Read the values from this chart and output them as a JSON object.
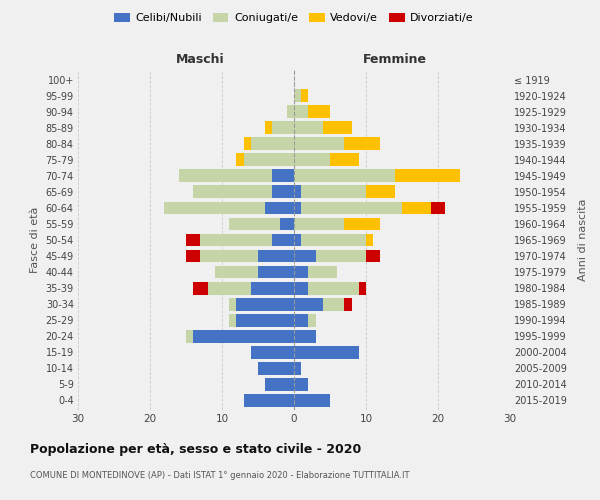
{
  "age_groups": [
    "0-4",
    "5-9",
    "10-14",
    "15-19",
    "20-24",
    "25-29",
    "30-34",
    "35-39",
    "40-44",
    "45-49",
    "50-54",
    "55-59",
    "60-64",
    "65-69",
    "70-74",
    "75-79",
    "80-84",
    "85-89",
    "90-94",
    "95-99",
    "100+"
  ],
  "birth_years": [
    "2015-2019",
    "2010-2014",
    "2005-2009",
    "2000-2004",
    "1995-1999",
    "1990-1994",
    "1985-1989",
    "1980-1984",
    "1975-1979",
    "1970-1974",
    "1965-1969",
    "1960-1964",
    "1955-1959",
    "1950-1954",
    "1945-1949",
    "1940-1944",
    "1935-1939",
    "1930-1934",
    "1925-1929",
    "1920-1924",
    "≤ 1919"
  ],
  "male": {
    "celibi": [
      7,
      4,
      5,
      6,
      14,
      8,
      8,
      6,
      5,
      5,
      3,
      2,
      4,
      3,
      3,
      0,
      0,
      0,
      0,
      0,
      0
    ],
    "coniugati": [
      0,
      0,
      0,
      0,
      1,
      1,
      1,
      6,
      6,
      8,
      10,
      7,
      14,
      11,
      13,
      7,
      6,
      3,
      1,
      0,
      0
    ],
    "vedovi": [
      0,
      0,
      0,
      0,
      0,
      0,
      0,
      0,
      0,
      0,
      0,
      0,
      0,
      0,
      0,
      1,
      1,
      1,
      0,
      0,
      0
    ],
    "divorziati": [
      0,
      0,
      0,
      0,
      0,
      0,
      0,
      2,
      0,
      2,
      2,
      0,
      0,
      0,
      0,
      0,
      0,
      0,
      0,
      0,
      0
    ]
  },
  "female": {
    "nubili": [
      5,
      2,
      1,
      9,
      3,
      2,
      4,
      2,
      2,
      3,
      1,
      0,
      1,
      1,
      0,
      0,
      0,
      0,
      0,
      0,
      0
    ],
    "coniugate": [
      0,
      0,
      0,
      0,
      0,
      1,
      3,
      7,
      4,
      7,
      9,
      7,
      14,
      9,
      14,
      5,
      7,
      4,
      2,
      1,
      0
    ],
    "vedove": [
      0,
      0,
      0,
      0,
      0,
      0,
      0,
      0,
      0,
      0,
      1,
      5,
      4,
      4,
      9,
      4,
      5,
      4,
      3,
      1,
      0
    ],
    "divorziate": [
      0,
      0,
      0,
      0,
      0,
      0,
      1,
      1,
      0,
      2,
      0,
      0,
      2,
      0,
      0,
      0,
      0,
      0,
      0,
      0,
      0
    ]
  },
  "colors": {
    "celibi_nubili": "#4472c4",
    "coniugati": "#c5d5a8",
    "vedovi": "#ffc000",
    "divorziati": "#cc0000"
  },
  "xlim": 30,
  "title": "Popolazione per età, sesso e stato civile - 2020",
  "subtitle": "COMUNE DI MONTEDINOVE (AP) - Dati ISTAT 1° gennaio 2020 - Elaborazione TUTTITALIA.IT",
  "ylabel_left": "Fasce di età",
  "ylabel_right": "Anni di nascita",
  "xlabel_male": "Maschi",
  "xlabel_female": "Femmine",
  "legend_labels": [
    "Celibi/Nubili",
    "Coniugati/e",
    "Vedovi/e",
    "Divorziati/e"
  ],
  "background_color": "#f0f0f0"
}
